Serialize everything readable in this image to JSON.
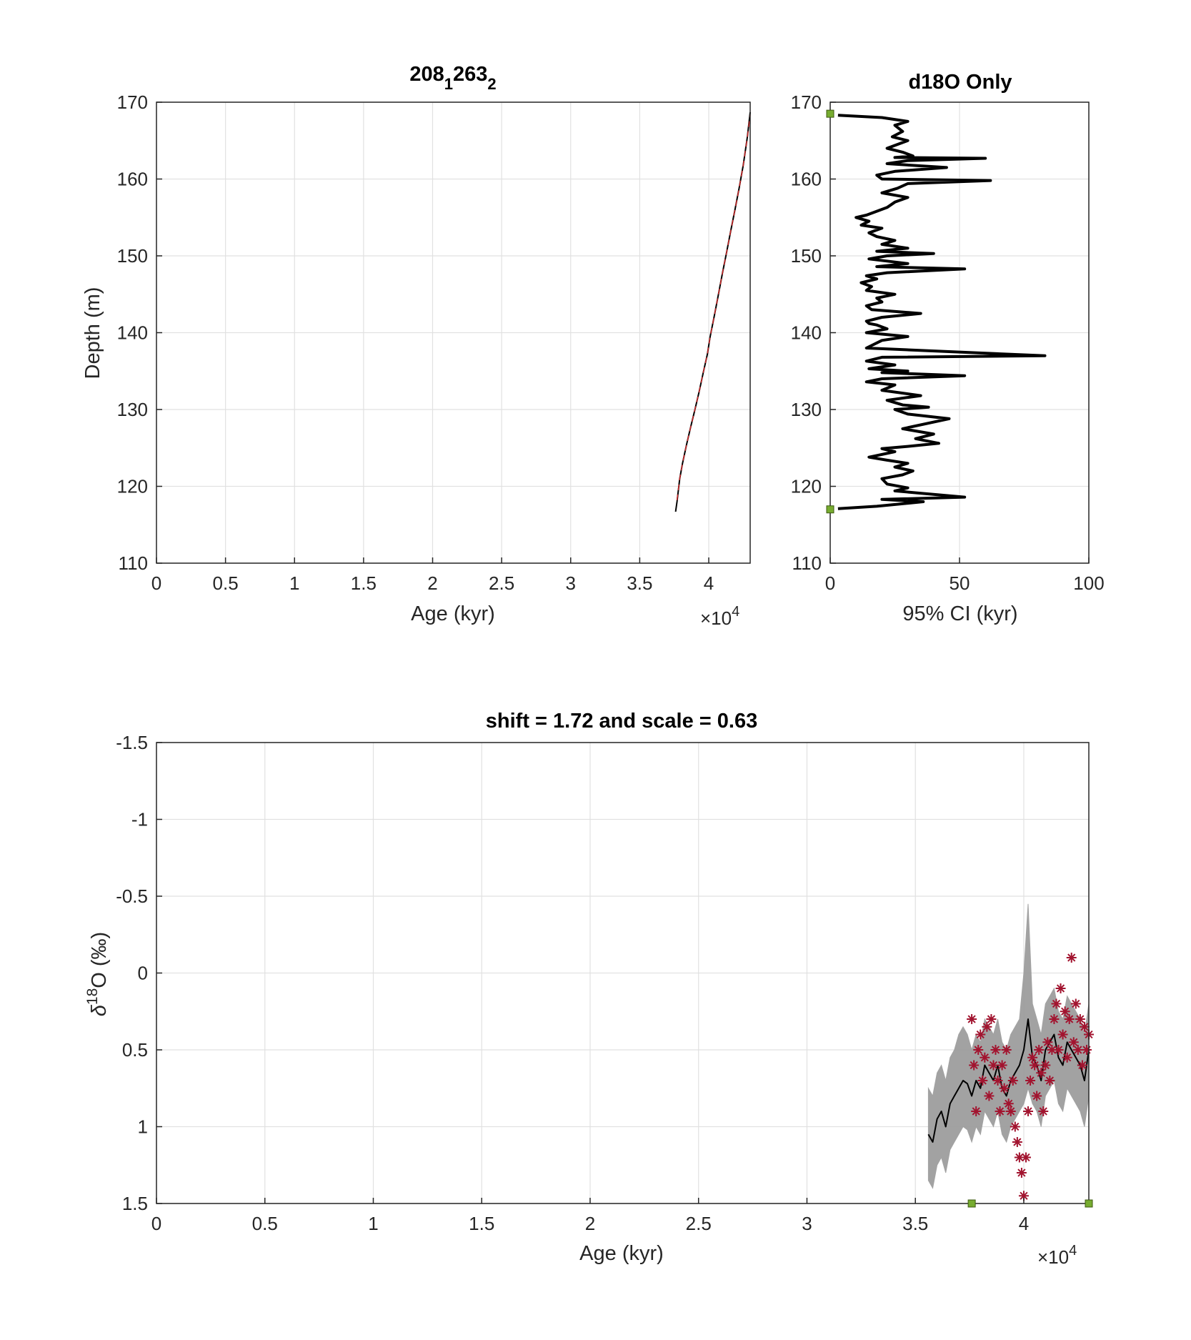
{
  "chart_data": [
    {
      "type": "line",
      "title_main": "208",
      "title_sub1": "1",
      "title_mid": "263",
      "title_sub2": "2",
      "xlabel": "Age (kyr)",
      "ylabel": "Depth (m)",
      "x_multiplier": "×10",
      "x_multiplier_exp": "4",
      "xlim": [
        0,
        43000
      ],
      "ylim": [
        110,
        170
      ],
      "xticks": [
        "0",
        "0.5",
        "1",
        "1.5",
        "2",
        "2.5",
        "3",
        "3.5",
        "4"
      ],
      "xtick_values": [
        0,
        5000,
        10000,
        15000,
        20000,
        25000,
        30000,
        35000,
        40000
      ],
      "yticks": [
        "110",
        "120",
        "130",
        "140",
        "150",
        "160",
        "170"
      ],
      "ytick_values": [
        110,
        120,
        130,
        140,
        150,
        160,
        170
      ],
      "grid": true,
      "series": [
        {
          "color": "#000000",
          "style": "solid",
          "x": [
            37600,
            37700,
            37800,
            37900,
            38100,
            38400,
            38700,
            39000,
            39300,
            39600,
            39900,
            40100,
            40400,
            40700,
            41000,
            41300,
            41600,
            41900,
            42200,
            42500,
            42800,
            43000
          ],
          "y": [
            116.7,
            118.0,
            119.5,
            121.0,
            123.0,
            125.5,
            127.8,
            130.0,
            132.3,
            134.8,
            137.2,
            139.5,
            142.2,
            145.0,
            147.8,
            150.5,
            153.3,
            156.0,
            158.8,
            161.8,
            165.5,
            168.7
          ]
        },
        {
          "color": "#cc2a2a",
          "style": "dashed",
          "x": [
            37700,
            37900,
            38100,
            38400,
            38700,
            39000,
            39300,
            39600,
            39900,
            40100,
            40400,
            40700,
            41000,
            41300,
            41600,
            41900,
            42200,
            42500,
            42800,
            43000
          ],
          "y": [
            118.2,
            121.0,
            123.0,
            125.5,
            127.8,
            130.0,
            132.3,
            134.8,
            137.2,
            139.5,
            142.2,
            145.0,
            147.8,
            150.5,
            153.3,
            156.0,
            158.8,
            161.8,
            165.5,
            168.3
          ]
        }
      ]
    },
    {
      "type": "line",
      "title": "d18O Only",
      "xlabel": "95% CI (kyr)",
      "xlim": [
        0,
        100
      ],
      "ylim": [
        110,
        170
      ],
      "xticks": [
        "0",
        "50",
        "100"
      ],
      "xtick_values": [
        0,
        50,
        100
      ],
      "yticks": [
        "110",
        "120",
        "130",
        "140",
        "150",
        "160",
        "170"
      ],
      "ytick_values": [
        110,
        120,
        130,
        140,
        150,
        160,
        170
      ],
      "grid": true,
      "series": [
        {
          "color": "#000000",
          "x": [
            3,
            20,
            30,
            25,
            28,
            24,
            30,
            26,
            22,
            28,
            32,
            25,
            60,
            30,
            22,
            45,
            25,
            18,
            20,
            62,
            30,
            26,
            20,
            30,
            25,
            22,
            18,
            14,
            10,
            15,
            12,
            20,
            15,
            18,
            25,
            20,
            30,
            18,
            40,
            22,
            15,
            30,
            18,
            52,
            22,
            14,
            18,
            12,
            16,
            14,
            25,
            18,
            20,
            14,
            16,
            35,
            20,
            14,
            15,
            18,
            22,
            14,
            30,
            20,
            14,
            83,
            20,
            14,
            25,
            15,
            30,
            20,
            52,
            20,
            14,
            25,
            20,
            35,
            22,
            28,
            38,
            25,
            30,
            46,
            28,
            40,
            33,
            42,
            30,
            20,
            25,
            15,
            22,
            30,
            25,
            32,
            28,
            20,
            22,
            30,
            25,
            52,
            20,
            36,
            18,
            3
          ],
          "y": [
            168.3,
            168.0,
            167.5,
            167.0,
            166.2,
            165.5,
            165.0,
            164.5,
            164.0,
            163.5,
            163.0,
            162.8,
            162.7,
            162.4,
            162.0,
            161.5,
            161.0,
            160.5,
            160.0,
            159.8,
            159.4,
            158.8,
            158.2,
            157.6,
            157.0,
            156.3,
            155.8,
            155.3,
            155.0,
            154.5,
            154.0,
            153.6,
            153.0,
            152.5,
            152.0,
            151.5,
            151.0,
            150.6,
            150.3,
            150.0,
            149.6,
            149.0,
            148.6,
            148.3,
            147.8,
            147.4,
            147.0,
            146.5,
            146.0,
            145.5,
            145.0,
            144.5,
            144.0,
            143.5,
            143.0,
            142.5,
            142.0,
            141.5,
            141.2,
            141.0,
            140.5,
            140.0,
            139.5,
            139.0,
            138.0,
            137.0,
            136.8,
            136.3,
            135.8,
            135.3,
            135.0,
            134.8,
            134.4,
            134.0,
            133.6,
            133.2,
            132.5,
            131.8,
            131.2,
            130.6,
            130.3,
            130.0,
            129.4,
            128.8,
            127.5,
            126.8,
            126.2,
            125.6,
            125.2,
            124.9,
            124.5,
            123.8,
            123.4,
            123.0,
            122.5,
            122.0,
            121.5,
            121.0,
            120.3,
            119.8,
            119.4,
            118.6,
            118.3,
            118.0,
            117.4,
            117.1
          ]
        }
      ],
      "markers": [
        {
          "color": "#77ac30",
          "x": 0,
          "y": 168.5
        },
        {
          "color": "#77ac30",
          "x": 0,
          "y": 117.0
        }
      ]
    },
    {
      "type": "line",
      "title": "shift = 1.72 and scale = 0.63",
      "xlabel": "Age (kyr)",
      "ylabel_prefix": "δ",
      "ylabel_sup": "18",
      "ylabel_suffix": "O (‰)",
      "x_multiplier": "×10",
      "x_multiplier_exp": "4",
      "xlim": [
        0,
        43000
      ],
      "ylim": [
        -1.5,
        1.5
      ],
      "y_reversed": true,
      "xticks": [
        "0",
        "0.5",
        "1",
        "1.5",
        "2",
        "2.5",
        "3",
        "3.5",
        "4"
      ],
      "xtick_values": [
        0,
        5000,
        10000,
        15000,
        20000,
        25000,
        30000,
        35000,
        40000
      ],
      "yticks": [
        "-1.5",
        "-1",
        "-0.5",
        "0",
        "0.5",
        "1",
        "1.5"
      ],
      "ytick_values": [
        -1.5,
        -1.0,
        -0.5,
        0.0,
        0.5,
        1.0,
        1.5
      ],
      "grid": true,
      "series": [
        {
          "name": "",
          "color": "#000000",
          "band_color": "#999999",
          "x": [
            35600,
            35800,
            36000,
            36200,
            36400,
            36600,
            36800,
            37000,
            37200,
            37400,
            37600,
            37800,
            38000,
            38200,
            38400,
            38600,
            38800,
            39000,
            39200,
            39400,
            39600,
            39800,
            40000,
            40200,
            40400,
            40600,
            40800,
            41000,
            41200,
            41400,
            41600,
            41800,
            42000,
            42200,
            42400,
            42600,
            42800,
            43000
          ],
          "y": [
            1.05,
            1.1,
            0.95,
            0.9,
            1.0,
            0.85,
            0.8,
            0.75,
            0.7,
            0.72,
            0.8,
            0.7,
            0.75,
            0.6,
            0.65,
            0.7,
            0.6,
            0.75,
            0.8,
            0.7,
            0.65,
            0.6,
            0.5,
            0.3,
            0.55,
            0.6,
            0.7,
            0.5,
            0.45,
            0.4,
            0.55,
            0.6,
            0.45,
            0.5,
            0.55,
            0.6,
            0.7,
            0.5
          ],
          "band_low": [
            0.75,
            0.8,
            0.65,
            0.6,
            0.7,
            0.55,
            0.5,
            0.4,
            0.35,
            0.4,
            0.5,
            0.4,
            0.45,
            0.3,
            0.35,
            0.4,
            0.3,
            0.45,
            0.5,
            0.4,
            0.35,
            0.3,
            0.0,
            -0.45,
            0.2,
            0.3,
            0.4,
            0.2,
            0.15,
            0.1,
            0.25,
            0.3,
            0.15,
            0.2,
            0.25,
            0.3,
            0.4,
            0.2
          ],
          "band_high": [
            1.35,
            1.4,
            1.25,
            1.2,
            1.3,
            1.15,
            1.1,
            1.05,
            1.0,
            1.02,
            1.1,
            1.0,
            1.05,
            0.9,
            0.95,
            1.0,
            0.9,
            1.05,
            1.1,
            1.0,
            0.95,
            0.9,
            0.85,
            0.75,
            0.85,
            0.9,
            1.0,
            0.8,
            0.75,
            0.7,
            0.85,
            0.9,
            0.75,
            0.8,
            0.85,
            0.9,
            1.0,
            0.8
          ]
        },
        {
          "name": "",
          "color": "#a2142f",
          "marker": "asterisk",
          "x": [
            37600,
            37700,
            37800,
            37900,
            38000,
            38100,
            38200,
            38300,
            38400,
            38500,
            38600,
            38700,
            38800,
            38900,
            39000,
            39100,
            39200,
            39300,
            39400,
            39500,
            39600,
            39700,
            39800,
            39900,
            40000,
            40100,
            40200,
            40300,
            40400,
            40500,
            40600,
            40700,
            40800,
            40900,
            41000,
            41100,
            41200,
            41300,
            41400,
            41500,
            41600,
            41700,
            41800,
            41900,
            42000,
            42100,
            42200,
            42300,
            42400,
            42500,
            42600,
            42700,
            42800,
            42900,
            43000
          ],
          "y": [
            0.3,
            0.6,
            0.9,
            0.5,
            0.4,
            0.7,
            0.55,
            0.35,
            0.8,
            0.3,
            0.6,
            0.5,
            0.7,
            0.9,
            0.6,
            0.75,
            0.5,
            0.85,
            0.9,
            0.7,
            1.0,
            1.1,
            1.2,
            1.3,
            1.45,
            1.2,
            0.9,
            0.7,
            0.55,
            0.6,
            0.8,
            0.5,
            0.65,
            0.9,
            0.6,
            0.45,
            0.7,
            0.5,
            0.3,
            0.2,
            0.5,
            0.1,
            0.4,
            0.25,
            0.55,
            0.3,
            -0.1,
            0.45,
            0.2,
            0.5,
            0.3,
            0.6,
            0.35,
            0.5,
            0.4
          ]
        }
      ],
      "markers": [
        {
          "color": "#77ac30",
          "x": 37600,
          "y": 1.5
        },
        {
          "color": "#77ac30",
          "x": 43000,
          "y": 1.5
        }
      ]
    }
  ]
}
